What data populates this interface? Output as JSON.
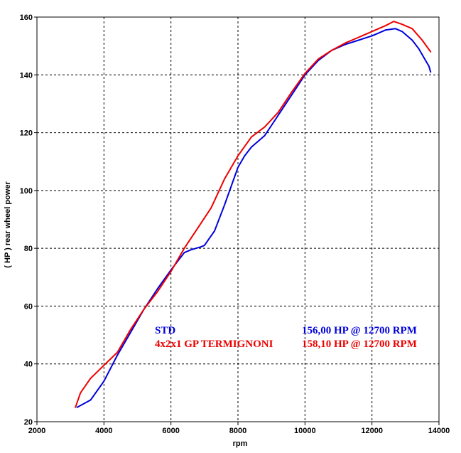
{
  "chart_data": {
    "type": "line",
    "xlabel": "rpm",
    "ylabel": "( HP )   rear  wheel  power",
    "xlim": [
      2000,
      14000
    ],
    "ylim": [
      20,
      160
    ],
    "x_ticks": [
      2000,
      4000,
      6000,
      8000,
      10000,
      12000,
      14000
    ],
    "y_ticks": [
      20,
      40,
      60,
      80,
      100,
      120,
      140,
      160
    ],
    "grid": true,
    "series": [
      {
        "name": "STD",
        "color": "#0000dd",
        "summary": "156,00 HP @ 12700 RPM",
        "points": [
          [
            3200,
            25
          ],
          [
            3600,
            27.5
          ],
          [
            4000,
            34
          ],
          [
            4400,
            43
          ],
          [
            4800,
            51
          ],
          [
            5200,
            59
          ],
          [
            5600,
            66
          ],
          [
            6000,
            72.5
          ],
          [
            6400,
            78.5
          ],
          [
            6600,
            79.5
          ],
          [
            6900,
            80.5
          ],
          [
            7000,
            81
          ],
          [
            7300,
            86
          ],
          [
            7600,
            95
          ],
          [
            8000,
            108
          ],
          [
            8200,
            112
          ],
          [
            8400,
            115
          ],
          [
            8800,
            119
          ],
          [
            9200,
            126
          ],
          [
            9600,
            133
          ],
          [
            10000,
            140
          ],
          [
            10400,
            145
          ],
          [
            10800,
            148.5
          ],
          [
            11200,
            150.5
          ],
          [
            11600,
            152
          ],
          [
            12000,
            153.5
          ],
          [
            12200,
            154.5
          ],
          [
            12400,
            155.5
          ],
          [
            12700,
            156
          ],
          [
            12900,
            155
          ],
          [
            13200,
            152
          ],
          [
            13400,
            149
          ],
          [
            13600,
            145
          ],
          [
            13700,
            143
          ],
          [
            13750,
            141
          ]
        ]
      },
      {
        "name": "4x2x1 GP TERMIGNONI",
        "color": "#ee0000",
        "summary": "158,10 HP @ 12700 RPM",
        "points": [
          [
            3150,
            25
          ],
          [
            3300,
            30
          ],
          [
            3600,
            35
          ],
          [
            4000,
            39.5
          ],
          [
            4400,
            44
          ],
          [
            4800,
            52
          ],
          [
            5200,
            59
          ],
          [
            5600,
            65
          ],
          [
            6000,
            72
          ],
          [
            6400,
            80
          ],
          [
            6800,
            87
          ],
          [
            7200,
            94
          ],
          [
            7600,
            104
          ],
          [
            8000,
            112
          ],
          [
            8400,
            118.5
          ],
          [
            8800,
            122
          ],
          [
            9200,
            127
          ],
          [
            9600,
            134
          ],
          [
            10000,
            140.5
          ],
          [
            10400,
            145.5
          ],
          [
            10800,
            148.5
          ],
          [
            11200,
            151
          ],
          [
            11600,
            153
          ],
          [
            12000,
            155
          ],
          [
            12400,
            157
          ],
          [
            12650,
            158.5
          ],
          [
            12900,
            157.5
          ],
          [
            13200,
            156
          ],
          [
            13500,
            152
          ],
          [
            13750,
            148
          ]
        ]
      }
    ]
  }
}
